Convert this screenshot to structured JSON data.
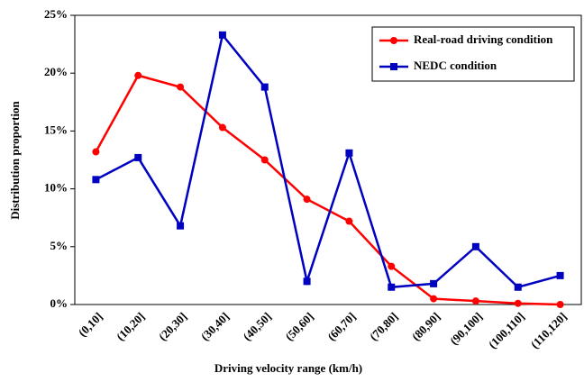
{
  "chart_data": {
    "type": "line",
    "x_label": "Driving velocity range (km/h)",
    "y_label": "Distribution proportion",
    "categories": [
      "(0,10]",
      "(10,20]",
      "(20,30]",
      "(30,40]",
      "(40,50]",
      "(50,60]",
      "(60,70]",
      "(70,80]",
      "(80,90]",
      "(90,100]",
      "(100,110]",
      "(110,120]"
    ],
    "series": [
      {
        "name": "Real-road driving condition",
        "color": "#ff0000",
        "marker": "circle",
        "values": [
          13.2,
          19.8,
          18.8,
          15.3,
          12.5,
          9.1,
          7.2,
          3.3,
          0.5,
          0.3,
          0.1,
          0
        ]
      },
      {
        "name": "NEDC condition",
        "color": "#0000c0",
        "marker": "square",
        "values": [
          10.8,
          12.7,
          6.8,
          23.3,
          18.8,
          2.0,
          13.1,
          1.5,
          1.8,
          5.0,
          1.5,
          2.5
        ]
      }
    ],
    "ylim": [
      0,
      25
    ],
    "yticks": [
      {
        "value": 0,
        "label": "0%"
      },
      {
        "value": 5,
        "label": "5%"
      },
      {
        "value": 10,
        "label": "10%"
      },
      {
        "value": 15,
        "label": "15%"
      },
      {
        "value": 20,
        "label": "20%"
      },
      {
        "value": 25,
        "label": "25%"
      }
    ],
    "legend": "upper-right"
  }
}
